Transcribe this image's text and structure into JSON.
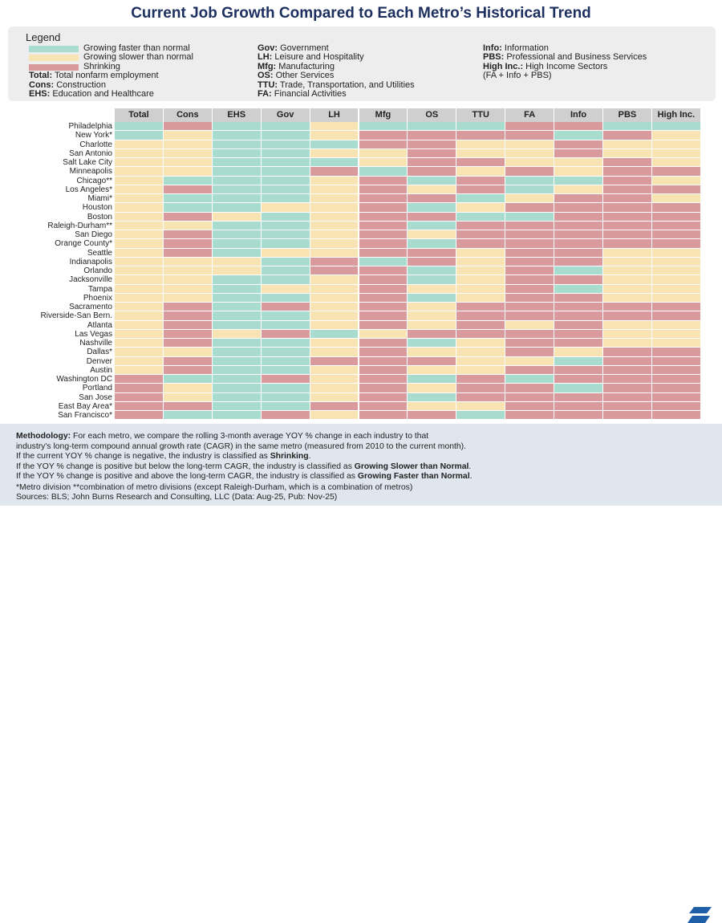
{
  "title": "Current Job Growth Compared to Each Metro’s Historical Trend",
  "legend": {
    "heading": "Legend",
    "colors": {
      "faster": "#a8dccf",
      "slower": "#f8e4b3",
      "shrinking": "#d99a9e"
    },
    "status_items": [
      {
        "key": "faster",
        "label": "Growing faster than normal"
      },
      {
        "key": "slower",
        "label": "Growing slower than normal"
      },
      {
        "key": "shrinking",
        "label": "Shrinking"
      }
    ],
    "abbr_col1": [
      {
        "abbr": "Total:",
        "desc": " Total nonfarm employment"
      },
      {
        "abbr": "Cons:",
        "desc": " Construction"
      },
      {
        "abbr": "EHS:",
        "desc": " Education and Healthcare"
      }
    ],
    "abbr_col2": [
      {
        "abbr": "Gov:",
        "desc": " Government"
      },
      {
        "abbr": "LH:",
        "desc": " Leisure and Hospitality"
      },
      {
        "abbr": "Mfg:",
        "desc": " Manufacturing"
      },
      {
        "abbr": "OS:",
        "desc": " Other Services"
      },
      {
        "abbr": "TTU:",
        "desc": " Trade, Transportation, and Utilities"
      },
      {
        "abbr": "FA:",
        "desc": " Financial Activities"
      }
    ],
    "abbr_col3": [
      {
        "abbr": "Info:",
        "desc": " Information"
      },
      {
        "abbr": "PBS:",
        "desc": " Professional and Business Services"
      },
      {
        "abbr": "High Inc.:",
        "desc": " High Income Sectors"
      },
      {
        "abbr": "",
        "desc": "(FA + Info + PBS)"
      }
    ]
  },
  "chart_data": {
    "type": "heatmap",
    "title": "Current Job Growth Compared to Each Metro’s Historical Trend",
    "value_key": {
      "F": "Growing faster than normal",
      "S": "Growing slower than normal",
      "X": "Shrinking"
    },
    "columns": [
      "Total",
      "Cons",
      "EHS",
      "Gov",
      "LH",
      "Mfg",
      "OS",
      "TTU",
      "FA",
      "Info",
      "PBS",
      "High Inc."
    ],
    "rows": [
      {
        "metro": "Philadelphia",
        "values": [
          "F",
          "X",
          "F",
          "F",
          "S",
          "F",
          "F",
          "F",
          "X",
          "X",
          "F",
          "F"
        ]
      },
      {
        "metro": "New York*",
        "values": [
          "F",
          "S",
          "F",
          "F",
          "S",
          "X",
          "X",
          "X",
          "X",
          "F",
          "X",
          "S"
        ]
      },
      {
        "metro": "Charlotte",
        "values": [
          "S",
          "S",
          "F",
          "F",
          "F",
          "X",
          "X",
          "S",
          "S",
          "X",
          "S",
          "S"
        ]
      },
      {
        "metro": "San Antonio",
        "values": [
          "S",
          "S",
          "F",
          "F",
          "S",
          "S",
          "X",
          "S",
          "S",
          "X",
          "S",
          "S"
        ]
      },
      {
        "metro": "Salt Lake City",
        "values": [
          "S",
          "S",
          "F",
          "F",
          "F",
          "S",
          "X",
          "X",
          "S",
          "S",
          "X",
          "S"
        ]
      },
      {
        "metro": "Minneapolis",
        "values": [
          "S",
          "S",
          "F",
          "F",
          "X",
          "F",
          "X",
          "S",
          "X",
          "S",
          "X",
          "X"
        ]
      },
      {
        "metro": "Chicago**",
        "values": [
          "S",
          "F",
          "F",
          "F",
          "S",
          "X",
          "F",
          "X",
          "F",
          "F",
          "X",
          "S"
        ]
      },
      {
        "metro": "Los Angeles*",
        "values": [
          "S",
          "X",
          "F",
          "F",
          "S",
          "X",
          "S",
          "X",
          "F",
          "S",
          "X",
          "X"
        ]
      },
      {
        "metro": "Miami*",
        "values": [
          "S",
          "F",
          "F",
          "F",
          "S",
          "X",
          "X",
          "F",
          "S",
          "X",
          "X",
          "S"
        ]
      },
      {
        "metro": "Houston",
        "values": [
          "S",
          "F",
          "F",
          "S",
          "S",
          "X",
          "F",
          "S",
          "X",
          "X",
          "X",
          "X"
        ]
      },
      {
        "metro": "Boston",
        "values": [
          "S",
          "X",
          "S",
          "F",
          "S",
          "X",
          "X",
          "F",
          "F",
          "X",
          "X",
          "X"
        ]
      },
      {
        "metro": "Raleigh-Durham**",
        "values": [
          "S",
          "S",
          "F",
          "F",
          "S",
          "X",
          "F",
          "X",
          "X",
          "X",
          "X",
          "X"
        ]
      },
      {
        "metro": "San Diego",
        "values": [
          "S",
          "X",
          "F",
          "F",
          "S",
          "X",
          "S",
          "X",
          "X",
          "X",
          "X",
          "X"
        ]
      },
      {
        "metro": "Orange County*",
        "values": [
          "S",
          "X",
          "F",
          "F",
          "S",
          "X",
          "F",
          "X",
          "X",
          "X",
          "X",
          "X"
        ]
      },
      {
        "metro": "Seattle",
        "values": [
          "S",
          "X",
          "F",
          "S",
          "S",
          "X",
          "X",
          "S",
          "X",
          "X",
          "S",
          "S"
        ]
      },
      {
        "metro": "Indianapolis",
        "values": [
          "S",
          "S",
          "S",
          "F",
          "X",
          "F",
          "X",
          "S",
          "X",
          "X",
          "S",
          "S"
        ]
      },
      {
        "metro": "Orlando",
        "values": [
          "S",
          "S",
          "S",
          "F",
          "X",
          "X",
          "F",
          "S",
          "X",
          "F",
          "S",
          "S"
        ]
      },
      {
        "metro": "Jacksonville",
        "values": [
          "S",
          "S",
          "F",
          "F",
          "S",
          "X",
          "F",
          "S",
          "X",
          "X",
          "S",
          "S"
        ]
      },
      {
        "metro": "Tampa",
        "values": [
          "S",
          "S",
          "F",
          "S",
          "S",
          "X",
          "S",
          "S",
          "X",
          "F",
          "S",
          "S"
        ]
      },
      {
        "metro": "Phoenix",
        "values": [
          "S",
          "S",
          "F",
          "F",
          "S",
          "X",
          "F",
          "S",
          "X",
          "X",
          "S",
          "S"
        ]
      },
      {
        "metro": "Sacramento",
        "values": [
          "S",
          "X",
          "F",
          "X",
          "S",
          "X",
          "S",
          "X",
          "X",
          "X",
          "X",
          "X"
        ]
      },
      {
        "metro": "Riverside-San Bern.",
        "values": [
          "S",
          "X",
          "F",
          "F",
          "S",
          "X",
          "S",
          "X",
          "X",
          "X",
          "X",
          "X"
        ]
      },
      {
        "metro": "Atlanta",
        "values": [
          "S",
          "X",
          "F",
          "F",
          "S",
          "X",
          "S",
          "X",
          "S",
          "X",
          "S",
          "S"
        ]
      },
      {
        "metro": "Las Vegas",
        "values": [
          "S",
          "X",
          "S",
          "X",
          "F",
          "S",
          "X",
          "X",
          "X",
          "X",
          "S",
          "S"
        ]
      },
      {
        "metro": "Nashville",
        "values": [
          "S",
          "X",
          "F",
          "F",
          "S",
          "X",
          "F",
          "S",
          "X",
          "X",
          "S",
          "S"
        ]
      },
      {
        "metro": "Dallas*",
        "values": [
          "S",
          "S",
          "F",
          "F",
          "S",
          "X",
          "S",
          "S",
          "X",
          "S",
          "X",
          "X"
        ]
      },
      {
        "metro": "Denver",
        "values": [
          "S",
          "X",
          "F",
          "F",
          "X",
          "X",
          "X",
          "S",
          "S",
          "F",
          "X",
          "X"
        ]
      },
      {
        "metro": "Austin",
        "values": [
          "S",
          "X",
          "F",
          "F",
          "S",
          "X",
          "S",
          "S",
          "X",
          "X",
          "X",
          "X"
        ]
      },
      {
        "metro": "Washington DC",
        "values": [
          "X",
          "F",
          "F",
          "X",
          "S",
          "X",
          "F",
          "X",
          "F",
          "X",
          "X",
          "X"
        ]
      },
      {
        "metro": "Portland",
        "values": [
          "X",
          "S",
          "F",
          "F",
          "S",
          "X",
          "S",
          "X",
          "X",
          "F",
          "X",
          "X"
        ]
      },
      {
        "metro": "San Jose",
        "values": [
          "X",
          "S",
          "F",
          "F",
          "S",
          "X",
          "F",
          "X",
          "X",
          "X",
          "X",
          "X"
        ]
      },
      {
        "metro": "East Bay Area*",
        "values": [
          "X",
          "X",
          "F",
          "F",
          "X",
          "X",
          "S",
          "S",
          "X",
          "X",
          "X",
          "X"
        ]
      },
      {
        "metro": "San Francisco*",
        "values": [
          "X",
          "F",
          "F",
          "X",
          "S",
          "X",
          "X",
          "F",
          "X",
          "X",
          "X",
          "X"
        ]
      }
    ]
  },
  "methodology": {
    "lead": "Methodology:",
    "line1": " For each metro, we compare the rolling 3-month average YOY % change in each industry to that",
    "line2": "industry's long-term compound annual growth rate (CAGR) in the same metro (measured from 2010 to the current month).",
    "line3_a": "If the current YOY % change is negative, the industry is classified as ",
    "line3_b": "Shrinking",
    "line3_c": ".",
    "line4_a": "If the YOY % change is positive but below the long-term CAGR, the industry is classified as ",
    "line4_b": "Growing Slower than Normal",
    "line4_c": ".",
    "line5_a": "If the YOY % change is positive and above the long-term CAGR, the industry is classified as ",
    "line5_b": "Growing Faster than Normal",
    "line5_c": "."
  },
  "notes": {
    "footnote": "*Metro division  **combination of metro divisions (except Raleigh-Durham, which is a combination of metros)",
    "sources": "Sources: BLS; John Burns Research and Consulting, LLC (Data: Aug-25, Pub: Nov-25)"
  },
  "logo": {
    "color": "#1f5fa8"
  }
}
